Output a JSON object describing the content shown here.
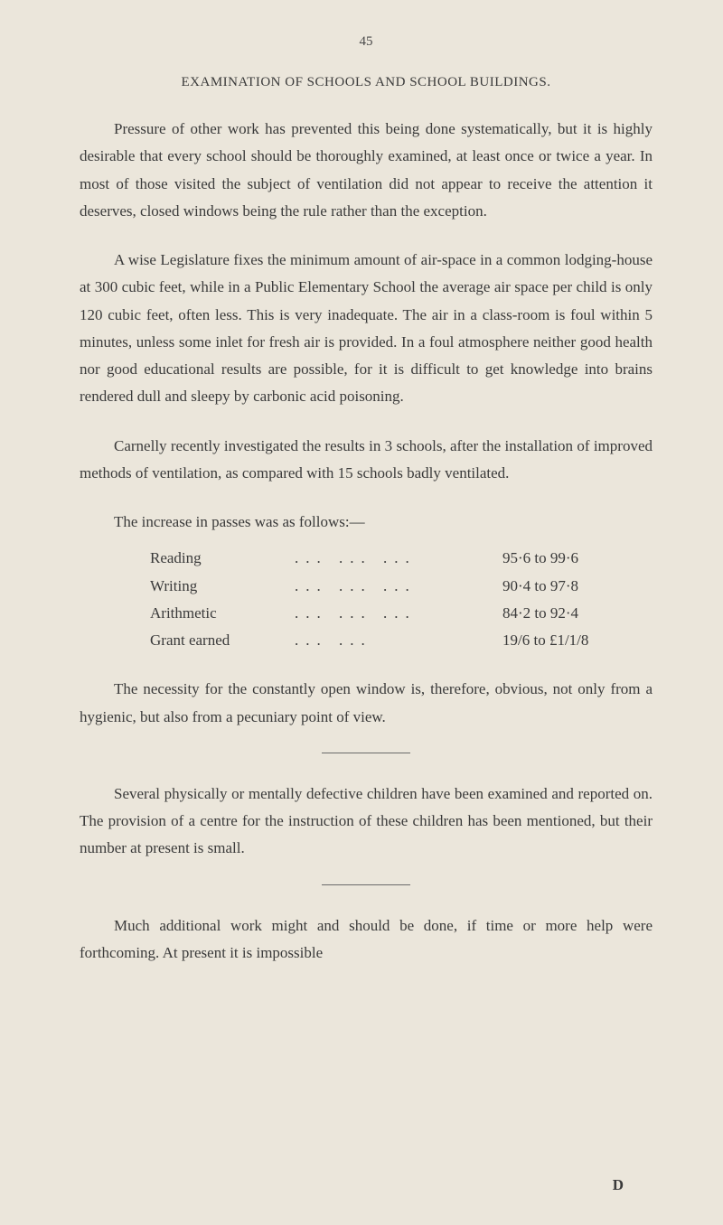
{
  "page_number": "45",
  "title": "EXAMINATION OF SCHOOLS AND SCHOOL BUILDINGS.",
  "paragraphs": {
    "p1": "Pressure of other work has prevented this being done systematically, but it is highly desirable that every school should be thoroughly examined, at least once or twice a year. In most of those visited the subject of ventilation did not appear to receive the attention it deserves, closed windows being the rule rather than the exception.",
    "p2": "A wise Legislature fixes the minimum amount of air-space in a common lodging-house at 300 cubic feet, while in a Public Elementary School the average air space per child is only 120 cubic feet, often less. This is very inadequate. The air in a class-room is foul within 5 minutes, unless some inlet for fresh air is provided. In a foul atmosphere neither good health nor good educational results are possible, for it is difficult to get knowledge into brains rendered dull and sleepy by carbonic acid poisoning.",
    "p3": "Carnelly recently investigated the results in 3 schools, after the installation of improved methods of ventilation, as compared with 15 schools badly ventilated.",
    "passes_intro": "The increase in passes was as follows:—",
    "p4": "The necessity for the constantly open window is, therefore, obvious, not only from a hygienic, but also from a pecuniary point of view.",
    "p5": "Several physically or mentally defective children have been examined and reported on. The provision of a centre for the instruction of these children has been mentioned, but their number at present is small.",
    "p6": "Much additional work might and should be done, if time or more help were forthcoming. At present it is impossible"
  },
  "passes": [
    {
      "label": "Reading",
      "dots": "...      ...       ...",
      "value": "95·6 to 99·6"
    },
    {
      "label": "Writing",
      "dots": "...      ...       ...",
      "value": "90·4 to 97·8"
    },
    {
      "label": "Arithmetic",
      "dots": "...      ...       ...",
      "value": "84·2 to 92·4"
    },
    {
      "label": "Grant earned",
      "dots": "...      ...       ",
      "value": "19/6 to £1/1/8"
    }
  ],
  "footer_letter": "D",
  "colors": {
    "background": "#ebe6db",
    "text": "#3a3a3a",
    "divider": "#6a6a6a"
  },
  "typography": {
    "body_fontsize": 17,
    "title_fontsize": 15,
    "line_height": 1.78
  }
}
